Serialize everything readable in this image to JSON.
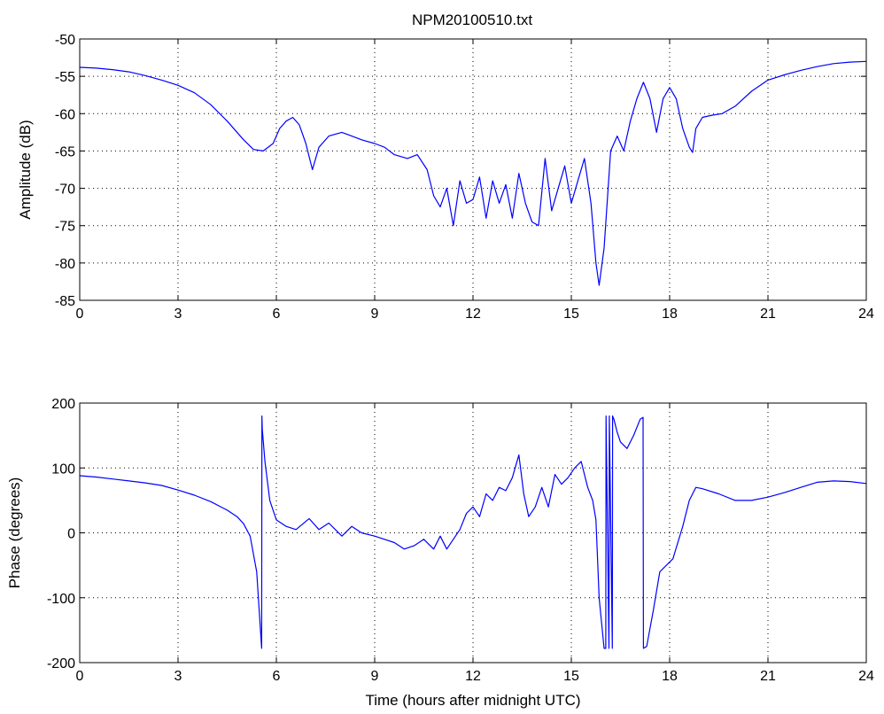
{
  "figure": {
    "title": "NPM20100510.txt",
    "line_color": "#0000ff"
  },
  "chart_data": [
    {
      "type": "line",
      "title": "NPM20100510.txt",
      "xlabel": "",
      "ylabel": "Amplitude (dB)",
      "xlim": [
        0,
        24
      ],
      "ylim": [
        -85,
        -50
      ],
      "xticks": [
        0,
        3,
        6,
        9,
        12,
        15,
        18,
        21,
        24
      ],
      "yticks": [
        -85,
        -80,
        -75,
        -70,
        -65,
        -60,
        -55,
        -50
      ],
      "grid": true,
      "series": [
        {
          "x": [
            0,
            0.5,
            1,
            1.5,
            2,
            2.5,
            3,
            3.5,
            4,
            4.5,
            5,
            5.3,
            5.6,
            5.9,
            6.1,
            6.3,
            6.5,
            6.7,
            6.9,
            7.1,
            7.3,
            7.6,
            8.0,
            8.3,
            8.6,
            9.0,
            9.3,
            9.6,
            10.0,
            10.3,
            10.6,
            10.8,
            11.0,
            11.2,
            11.4,
            11.6,
            11.8,
            12.0,
            12.2,
            12.4,
            12.6,
            12.8,
            13.0,
            13.2,
            13.4,
            13.6,
            13.8,
            14.0,
            14.2,
            14.4,
            14.6,
            14.8,
            15.0,
            15.2,
            15.4,
            15.6,
            15.75,
            15.85,
            16.0,
            16.2,
            16.4,
            16.6,
            16.8,
            17.0,
            17.2,
            17.4,
            17.6,
            17.8,
            18.0,
            18.2,
            18.4,
            18.6,
            18.7,
            18.8,
            19.0,
            19.3,
            19.6,
            20.0,
            20.5,
            21.0,
            21.5,
            22.0,
            22.5,
            23.0,
            23.5,
            24.0
          ],
          "values": [
            -53.8,
            -53.9,
            -54.1,
            -54.4,
            -54.9,
            -55.5,
            -56.2,
            -57.2,
            -58.8,
            -61.0,
            -63.5,
            -64.8,
            -65.0,
            -64.0,
            -62.0,
            -61.0,
            -60.5,
            -61.5,
            -64.0,
            -67.5,
            -64.5,
            -63.0,
            -62.5,
            -63.0,
            -63.5,
            -64.0,
            -64.5,
            -65.5,
            -66.0,
            -65.5,
            -67.5,
            -71.0,
            -72.5,
            -70.0,
            -75.0,
            -69.0,
            -72.0,
            -71.5,
            -68.5,
            -74.0,
            -69.0,
            -72.0,
            -69.5,
            -74.0,
            -68.0,
            -72.0,
            -74.5,
            -75.0,
            -66.0,
            -73.0,
            -70.0,
            -67.0,
            -72.0,
            -69.0,
            -66.0,
            -72.0,
            -80.0,
            -83.0,
            -78.0,
            -65.0,
            -63.0,
            -65.0,
            -61.0,
            -58.0,
            -55.8,
            -58.0,
            -62.5,
            -58.0,
            -56.5,
            -58.0,
            -62.0,
            -64.5,
            -65.2,
            -62.0,
            -60.5,
            -60.2,
            -60.0,
            -59.0,
            -57.0,
            -55.5,
            -54.8,
            -54.2,
            -53.7,
            -53.3,
            -53.1,
            -53.0
          ]
        }
      ]
    },
    {
      "type": "line",
      "title": "",
      "xlabel": "Time (hours after midnight UTC)",
      "ylabel": "Phase (degrees)",
      "xlim": [
        0,
        24
      ],
      "ylim": [
        -200,
        200
      ],
      "xticks": [
        0,
        3,
        6,
        9,
        12,
        15,
        18,
        21,
        24
      ],
      "yticks": [
        -200,
        -100,
        0,
        100,
        200
      ],
      "grid": true,
      "series": [
        {
          "x": [
            0,
            0.5,
            1,
            1.5,
            2,
            2.5,
            3,
            3.5,
            4,
            4.5,
            4.8,
            5.0,
            5.2,
            5.4,
            5.55,
            5.56,
            5.57,
            5.65,
            5.8,
            6.0,
            6.3,
            6.6,
            7.0,
            7.3,
            7.6,
            8.0,
            8.3,
            8.6,
            9.0,
            9.3,
            9.6,
            9.9,
            10.2,
            10.5,
            10.8,
            11.0,
            11.2,
            11.4,
            11.6,
            11.8,
            12.0,
            12.2,
            12.4,
            12.6,
            12.8,
            13.0,
            13.2,
            13.4,
            13.55,
            13.7,
            13.9,
            14.1,
            14.3,
            14.5,
            14.7,
            14.9,
            15.1,
            15.3,
            15.5,
            15.65,
            15.75,
            15.85,
            16.0,
            16.05,
            16.06,
            16.15,
            16.16,
            16.25,
            16.26,
            16.3,
            16.4,
            16.5,
            16.7,
            16.9,
            17.1,
            17.19,
            17.2,
            17.3,
            17.5,
            17.7,
            17.9,
            18.1,
            18.4,
            18.6,
            18.8,
            19.0,
            19.5,
            20.0,
            20.5,
            21.0,
            21.5,
            22.0,
            22.5,
            23.0,
            23.5,
            24.0
          ],
          "values": [
            88,
            86,
            83,
            80,
            77,
            73,
            66,
            58,
            48,
            35,
            25,
            14,
            -5,
            -60,
            -178,
            180,
            160,
            110,
            50,
            20,
            10,
            5,
            22,
            5,
            15,
            -5,
            10,
            0,
            -5,
            -10,
            -15,
            -25,
            -20,
            -10,
            -25,
            -5,
            -25,
            -10,
            5,
            30,
            40,
            25,
            60,
            50,
            70,
            65,
            85,
            120,
            60,
            25,
            40,
            70,
            40,
            90,
            75,
            85,
            100,
            110,
            70,
            50,
            20,
            -100,
            -178,
            -178,
            180,
            -178,
            180,
            -178,
            180,
            175,
            155,
            140,
            130,
            150,
            175,
            178,
            -178,
            -175,
            -120,
            -60,
            -50,
            -40,
            10,
            50,
            70,
            68,
            60,
            50,
            50,
            55,
            62,
            70,
            78,
            80,
            79,
            76
          ]
        }
      ]
    }
  ]
}
